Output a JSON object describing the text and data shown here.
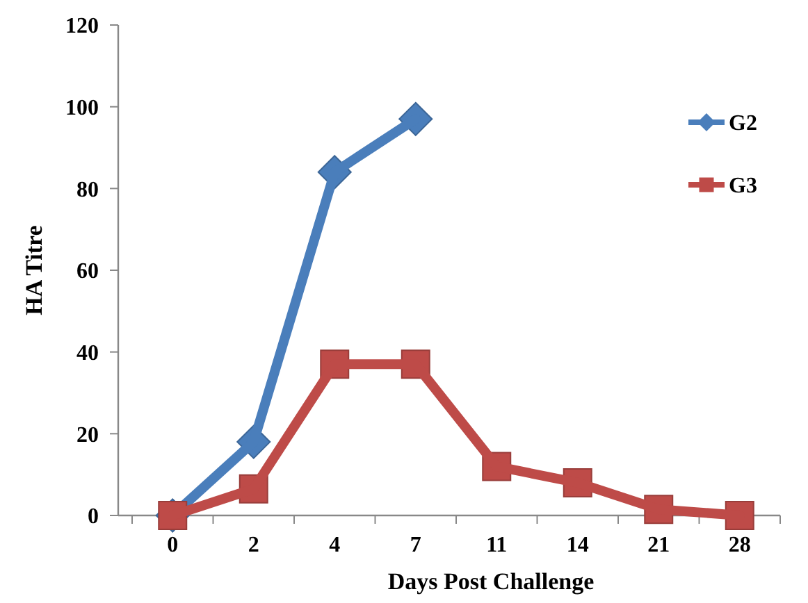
{
  "chart_data": {
    "type": "line",
    "xlabel": "Days Post Challenge",
    "ylabel": "HA Titre",
    "categories": [
      "0",
      "2",
      "4",
      "7",
      "11",
      "14",
      "21",
      "28"
    ],
    "series": [
      {
        "name": "G2",
        "color": "#4a7ebb",
        "marker": "diamond",
        "values": [
          0,
          18,
          84,
          97,
          null,
          null,
          null,
          null
        ]
      },
      {
        "name": "G3",
        "color": "#be4b48",
        "marker": "square",
        "values": [
          0,
          6.5,
          37,
          37,
          12,
          8,
          1.5,
          0
        ]
      }
    ],
    "ylim": [
      0,
      120
    ],
    "yticks": [
      0,
      20,
      40,
      60,
      80,
      100,
      120
    ],
    "grid": false,
    "legend": "right",
    "line_style": "solid"
  }
}
